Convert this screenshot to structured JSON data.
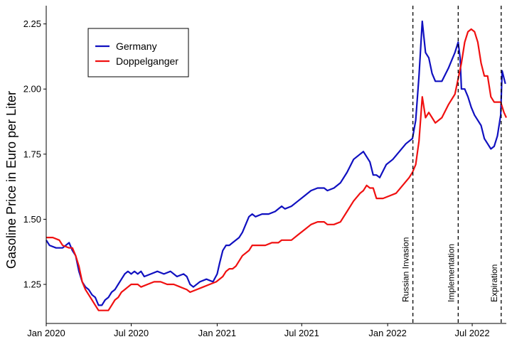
{
  "chart_data": {
    "type": "line",
    "title": "",
    "xlabel": "",
    "ylabel": "Gasoline Price in Euro per Liter",
    "x_range": [
      "2020-01-01",
      "2022-09-12"
    ],
    "ylim": [
      1.1,
      2.32
    ],
    "y_ticks": [
      1.25,
      1.5,
      1.75,
      2.0,
      2.25
    ],
    "y_tick_labels": [
      "1.25",
      "1.50",
      "1.75",
      "2.00",
      "2.25"
    ],
    "x_ticks": [
      "2020-01-01",
      "2020-07-01",
      "2021-01-01",
      "2021-07-01",
      "2022-01-01",
      "2022-07-01"
    ],
    "x_tick_labels": [
      "Jan 2020",
      "Jul 2020",
      "Jan 2021",
      "Jul 2021",
      "Jan 2022",
      "Jul 2022"
    ],
    "grid": false,
    "legend_position": "top-left",
    "series": [
      {
        "name": "Germany",
        "color": "#1010c0",
        "points": [
          [
            "2020-01-01",
            1.42
          ],
          [
            "2020-01-08",
            1.4
          ],
          [
            "2020-01-22",
            1.39
          ],
          [
            "2020-02-05",
            1.39
          ],
          [
            "2020-02-19",
            1.41
          ],
          [
            "2020-02-26",
            1.38
          ],
          [
            "2020-03-04",
            1.36
          ],
          [
            "2020-03-11",
            1.3
          ],
          [
            "2020-03-18",
            1.26
          ],
          [
            "2020-03-25",
            1.24
          ],
          [
            "2020-04-01",
            1.23
          ],
          [
            "2020-04-08",
            1.21
          ],
          [
            "2020-04-15",
            1.2
          ],
          [
            "2020-04-22",
            1.17
          ],
          [
            "2020-04-29",
            1.17
          ],
          [
            "2020-05-06",
            1.19
          ],
          [
            "2020-05-13",
            1.2
          ],
          [
            "2020-05-20",
            1.22
          ],
          [
            "2020-05-27",
            1.23
          ],
          [
            "2020-06-03",
            1.25
          ],
          [
            "2020-06-10",
            1.27
          ],
          [
            "2020-06-17",
            1.29
          ],
          [
            "2020-06-24",
            1.3
          ],
          [
            "2020-07-01",
            1.29
          ],
          [
            "2020-07-08",
            1.3
          ],
          [
            "2020-07-15",
            1.29
          ],
          [
            "2020-07-22",
            1.3
          ],
          [
            "2020-07-29",
            1.28
          ],
          [
            "2020-08-12",
            1.29
          ],
          [
            "2020-08-26",
            1.3
          ],
          [
            "2020-09-09",
            1.29
          ],
          [
            "2020-09-23",
            1.3
          ],
          [
            "2020-10-07",
            1.28
          ],
          [
            "2020-10-21",
            1.29
          ],
          [
            "2020-10-28",
            1.28
          ],
          [
            "2020-11-04",
            1.25
          ],
          [
            "2020-11-11",
            1.24
          ],
          [
            "2020-11-25",
            1.26
          ],
          [
            "2020-12-09",
            1.27
          ],
          [
            "2020-12-23",
            1.26
          ],
          [
            "2021-01-01",
            1.29
          ],
          [
            "2021-01-06",
            1.33
          ],
          [
            "2021-01-13",
            1.38
          ],
          [
            "2021-01-20",
            1.4
          ],
          [
            "2021-01-27",
            1.4
          ],
          [
            "2021-02-03",
            1.41
          ],
          [
            "2021-02-10",
            1.42
          ],
          [
            "2021-02-17",
            1.43
          ],
          [
            "2021-02-24",
            1.45
          ],
          [
            "2021-03-03",
            1.48
          ],
          [
            "2021-03-10",
            1.51
          ],
          [
            "2021-03-17",
            1.52
          ],
          [
            "2021-03-24",
            1.51
          ],
          [
            "2021-04-07",
            1.52
          ],
          [
            "2021-04-21",
            1.52
          ],
          [
            "2021-05-05",
            1.53
          ],
          [
            "2021-05-19",
            1.55
          ],
          [
            "2021-05-26",
            1.54
          ],
          [
            "2021-06-09",
            1.55
          ],
          [
            "2021-06-23",
            1.57
          ],
          [
            "2021-07-07",
            1.59
          ],
          [
            "2021-07-21",
            1.61
          ],
          [
            "2021-08-04",
            1.62
          ],
          [
            "2021-08-18",
            1.62
          ],
          [
            "2021-08-25",
            1.61
          ],
          [
            "2021-09-08",
            1.62
          ],
          [
            "2021-09-22",
            1.64
          ],
          [
            "2021-10-06",
            1.68
          ],
          [
            "2021-10-20",
            1.73
          ],
          [
            "2021-11-03",
            1.75
          ],
          [
            "2021-11-10",
            1.76
          ],
          [
            "2021-11-24",
            1.72
          ],
          [
            "2021-12-01",
            1.67
          ],
          [
            "2021-12-08",
            1.67
          ],
          [
            "2021-12-15",
            1.66
          ],
          [
            "2021-12-29",
            1.71
          ],
          [
            "2022-01-12",
            1.73
          ],
          [
            "2022-01-26",
            1.76
          ],
          [
            "2022-02-09",
            1.79
          ],
          [
            "2022-02-23",
            1.81
          ],
          [
            "2022-03-02",
            1.88
          ],
          [
            "2022-03-09",
            2.05
          ],
          [
            "2022-03-16",
            2.26
          ],
          [
            "2022-03-23",
            2.14
          ],
          [
            "2022-03-30",
            2.12
          ],
          [
            "2022-04-06",
            2.06
          ],
          [
            "2022-04-13",
            2.03
          ],
          [
            "2022-04-27",
            2.03
          ],
          [
            "2022-05-11",
            2.08
          ],
          [
            "2022-05-25",
            2.14
          ],
          [
            "2022-06-01",
            2.18
          ],
          [
            "2022-06-05",
            2.12
          ],
          [
            "2022-06-08",
            2.0
          ],
          [
            "2022-06-15",
            2.0
          ],
          [
            "2022-06-22",
            1.97
          ],
          [
            "2022-06-29",
            1.93
          ],
          [
            "2022-07-06",
            1.9
          ],
          [
            "2022-07-13",
            1.88
          ],
          [
            "2022-07-20",
            1.86
          ],
          [
            "2022-07-27",
            1.81
          ],
          [
            "2022-08-03",
            1.79
          ],
          [
            "2022-08-10",
            1.77
          ],
          [
            "2022-08-17",
            1.78
          ],
          [
            "2022-08-24",
            1.82
          ],
          [
            "2022-08-31",
            1.9
          ],
          [
            "2022-09-03",
            2.07
          ],
          [
            "2022-09-10",
            2.02
          ]
        ]
      },
      {
        "name": "Doppelganger",
        "color": "#f01010",
        "points": [
          [
            "2020-01-01",
            1.43
          ],
          [
            "2020-01-15",
            1.43
          ],
          [
            "2020-01-29",
            1.42
          ],
          [
            "2020-02-05",
            1.4
          ],
          [
            "2020-02-19",
            1.39
          ],
          [
            "2020-02-26",
            1.39
          ],
          [
            "2020-03-04",
            1.36
          ],
          [
            "2020-03-11",
            1.32
          ],
          [
            "2020-03-18",
            1.26
          ],
          [
            "2020-03-25",
            1.23
          ],
          [
            "2020-04-01",
            1.21
          ],
          [
            "2020-04-08",
            1.19
          ],
          [
            "2020-04-15",
            1.17
          ],
          [
            "2020-04-22",
            1.15
          ],
          [
            "2020-04-29",
            1.15
          ],
          [
            "2020-05-06",
            1.15
          ],
          [
            "2020-05-13",
            1.15
          ],
          [
            "2020-05-20",
            1.17
          ],
          [
            "2020-05-27",
            1.19
          ],
          [
            "2020-06-03",
            1.2
          ],
          [
            "2020-06-10",
            1.22
          ],
          [
            "2020-06-17",
            1.23
          ],
          [
            "2020-06-24",
            1.24
          ],
          [
            "2020-07-01",
            1.25
          ],
          [
            "2020-07-15",
            1.25
          ],
          [
            "2020-07-22",
            1.24
          ],
          [
            "2020-08-05",
            1.25
          ],
          [
            "2020-08-19",
            1.26
          ],
          [
            "2020-09-02",
            1.26
          ],
          [
            "2020-09-16",
            1.25
          ],
          [
            "2020-09-30",
            1.25
          ],
          [
            "2020-10-14",
            1.24
          ],
          [
            "2020-10-28",
            1.23
          ],
          [
            "2020-11-04",
            1.22
          ],
          [
            "2020-11-18",
            1.23
          ],
          [
            "2020-12-02",
            1.24
          ],
          [
            "2020-12-16",
            1.25
          ],
          [
            "2020-12-30",
            1.26
          ],
          [
            "2021-01-13",
            1.28
          ],
          [
            "2021-01-20",
            1.3
          ],
          [
            "2021-01-27",
            1.31
          ],
          [
            "2021-02-03",
            1.31
          ],
          [
            "2021-02-10",
            1.32
          ],
          [
            "2021-02-24",
            1.36
          ],
          [
            "2021-03-10",
            1.38
          ],
          [
            "2021-03-17",
            1.4
          ],
          [
            "2021-03-31",
            1.4
          ],
          [
            "2021-04-14",
            1.4
          ],
          [
            "2021-04-28",
            1.41
          ],
          [
            "2021-05-12",
            1.41
          ],
          [
            "2021-05-19",
            1.42
          ],
          [
            "2021-06-02",
            1.42
          ],
          [
            "2021-06-09",
            1.42
          ],
          [
            "2021-06-23",
            1.44
          ],
          [
            "2021-07-07",
            1.46
          ],
          [
            "2021-07-21",
            1.48
          ],
          [
            "2021-08-04",
            1.49
          ],
          [
            "2021-08-18",
            1.49
          ],
          [
            "2021-08-25",
            1.48
          ],
          [
            "2021-09-08",
            1.48
          ],
          [
            "2021-09-22",
            1.49
          ],
          [
            "2021-10-06",
            1.53
          ],
          [
            "2021-10-20",
            1.57
          ],
          [
            "2021-11-03",
            1.6
          ],
          [
            "2021-11-10",
            1.61
          ],
          [
            "2021-11-17",
            1.63
          ],
          [
            "2021-11-24",
            1.62
          ],
          [
            "2021-12-01",
            1.62
          ],
          [
            "2021-12-08",
            1.58
          ],
          [
            "2021-12-22",
            1.58
          ],
          [
            "2022-01-05",
            1.59
          ],
          [
            "2022-01-19",
            1.6
          ],
          [
            "2022-02-02",
            1.63
          ],
          [
            "2022-02-16",
            1.66
          ],
          [
            "2022-02-23",
            1.68
          ],
          [
            "2022-03-02",
            1.71
          ],
          [
            "2022-03-09",
            1.8
          ],
          [
            "2022-03-16",
            1.97
          ],
          [
            "2022-03-23",
            1.89
          ],
          [
            "2022-03-30",
            1.91
          ],
          [
            "2022-04-06",
            1.89
          ],
          [
            "2022-04-13",
            1.87
          ],
          [
            "2022-04-27",
            1.89
          ],
          [
            "2022-05-11",
            1.94
          ],
          [
            "2022-05-25",
            1.98
          ],
          [
            "2022-06-01",
            2.04
          ],
          [
            "2022-06-08",
            2.1
          ],
          [
            "2022-06-15",
            2.18
          ],
          [
            "2022-06-22",
            2.22
          ],
          [
            "2022-06-29",
            2.23
          ],
          [
            "2022-07-06",
            2.22
          ],
          [
            "2022-07-13",
            2.18
          ],
          [
            "2022-07-20",
            2.1
          ],
          [
            "2022-07-27",
            2.05
          ],
          [
            "2022-08-03",
            2.05
          ],
          [
            "2022-08-10",
            1.97
          ],
          [
            "2022-08-17",
            1.95
          ],
          [
            "2022-08-31",
            1.95
          ],
          [
            "2022-09-07",
            1.91
          ],
          [
            "2022-09-12",
            1.89
          ]
        ]
      }
    ],
    "annotations": [
      {
        "label": "Russian Invasion",
        "date": "2022-02-24",
        "style": "dashed-vertical"
      },
      {
        "label": "Implementation",
        "date": "2022-06-01",
        "style": "dashed-vertical"
      },
      {
        "label": "Expiration",
        "date": "2022-09-01",
        "style": "dashed-vertical"
      }
    ]
  }
}
